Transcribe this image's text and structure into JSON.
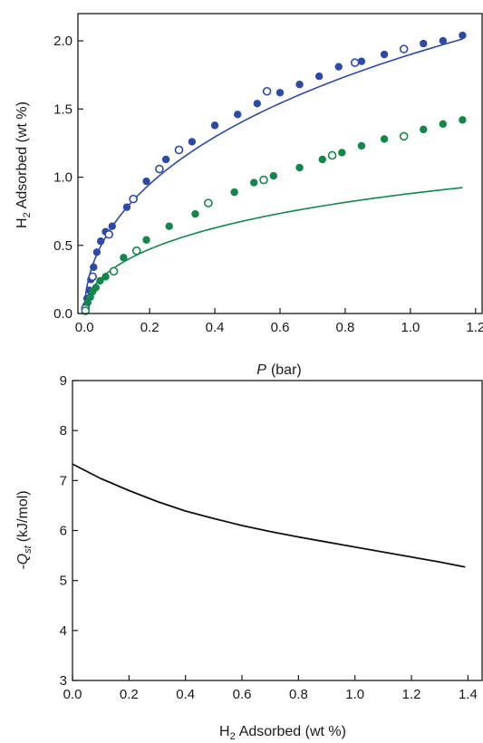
{
  "colors": {
    "blue": "#2d4aa8",
    "green": "#13864a",
    "axis": "#1a1a1a",
    "line": "#111111"
  },
  "chart_data": [
    {
      "type": "scatter",
      "title": "",
      "xlabel": "(bar)",
      "xlabel_symbol": "P",
      "ylabel": "Adsorbed (wt %)",
      "ylabel_symbol": "H",
      "ylabel_sub": "2",
      "xlim": [
        -0.02,
        1.22
      ],
      "ylim": [
        0,
        2.2
      ],
      "xticks": [
        0.0,
        0.2,
        0.4,
        0.6,
        0.8,
        1.0,
        1.2
      ],
      "xtick_labels": [
        "0.0",
        "0.2",
        "0.4",
        "0.6",
        "0.8",
        "1.0",
        "1.2"
      ],
      "yticks": [
        0.0,
        0.5,
        1.0,
        1.5,
        2.0
      ],
      "ytick_labels": [
        "0.0",
        "0.5",
        "1.0",
        "1.5",
        "2.0"
      ],
      "grid": false,
      "series": [
        {
          "color_key": "blue",
          "fit": {
            "a": 2.3,
            "b": 0.5,
            "c": -0.4
          },
          "filled_x": [
            0.005,
            0.008,
            0.015,
            0.02,
            0.028,
            0.038,
            0.05,
            0.065,
            0.085,
            0.13,
            0.19,
            0.25,
            0.33,
            0.4,
            0.47,
            0.53,
            0.6,
            0.66,
            0.72,
            0.78,
            0.85,
            0.92,
            1.04,
            1.1,
            1.16
          ],
          "filled_y": [
            0.06,
            0.11,
            0.17,
            0.25,
            0.34,
            0.45,
            0.53,
            0.6,
            0.64,
            0.78,
            0.97,
            1.13,
            1.26,
            1.38,
            1.46,
            1.54,
            1.62,
            1.68,
            1.74,
            1.81,
            1.85,
            1.9,
            1.98,
            2.0,
            2.04
          ],
          "open_x": [
            0.003,
            0.025,
            0.075,
            0.15,
            0.23,
            0.29,
            0.56,
            0.83,
            0.98
          ],
          "open_y": [
            0.04,
            0.27,
            0.58,
            0.84,
            1.06,
            1.2,
            1.63,
            1.84,
            1.94
          ]
        },
        {
          "color_key": "green",
          "fit": {
            "a": 1.13,
            "b": 0.48,
            "c": -0.25
          },
          "filled_x": [
            0.01,
            0.018,
            0.025,
            0.035,
            0.048,
            0.065,
            0.12,
            0.19,
            0.26,
            0.34,
            0.46,
            0.52,
            0.58,
            0.66,
            0.73,
            0.79,
            0.85,
            0.92,
            1.04,
            1.1,
            1.16
          ],
          "filled_y": [
            0.08,
            0.12,
            0.16,
            0.19,
            0.24,
            0.27,
            0.41,
            0.54,
            0.64,
            0.73,
            0.89,
            0.96,
            1.01,
            1.07,
            1.13,
            1.18,
            1.23,
            1.28,
            1.35,
            1.39,
            1.42
          ],
          "open_x": [
            0.003,
            0.09,
            0.16,
            0.38,
            0.55,
            0.76,
            0.98
          ],
          "open_y": [
            0.02,
            0.31,
            0.46,
            0.81,
            0.98,
            1.16,
            1.3
          ]
        }
      ]
    },
    {
      "type": "line",
      "title": "",
      "xlabel": "Adsorbed (wt %)",
      "xlabel_symbol": "H",
      "xlabel_sub": "2",
      "ylabel": "(kJ/mol)",
      "ylabel_symbol": "-Q",
      "ylabel_sub": "st",
      "xlim": [
        0,
        1.45
      ],
      "ylim": [
        3,
        9
      ],
      "xticks": [
        0.0,
        0.2,
        0.4,
        0.6,
        0.8,
        1.0,
        1.2,
        1.4
      ],
      "xtick_labels": [
        "0.0",
        "0.2",
        "0.4",
        "0.6",
        "0.8",
        "1.0",
        "1.2",
        "1.4"
      ],
      "yticks": [
        3,
        4,
        5,
        6,
        7,
        8,
        9
      ],
      "ytick_labels": [
        "3",
        "4",
        "5",
        "6",
        "7",
        "8",
        "9"
      ],
      "grid": false,
      "series": [
        {
          "color_key": "line",
          "x": [
            0.0,
            0.1,
            0.2,
            0.3,
            0.4,
            0.5,
            0.6,
            0.7,
            0.8,
            0.9,
            1.0,
            1.1,
            1.2,
            1.3,
            1.39
          ],
          "y": [
            7.33,
            7.04,
            6.8,
            6.58,
            6.39,
            6.24,
            6.1,
            5.98,
            5.87,
            5.77,
            5.67,
            5.57,
            5.47,
            5.37,
            5.27
          ]
        }
      ]
    }
  ]
}
